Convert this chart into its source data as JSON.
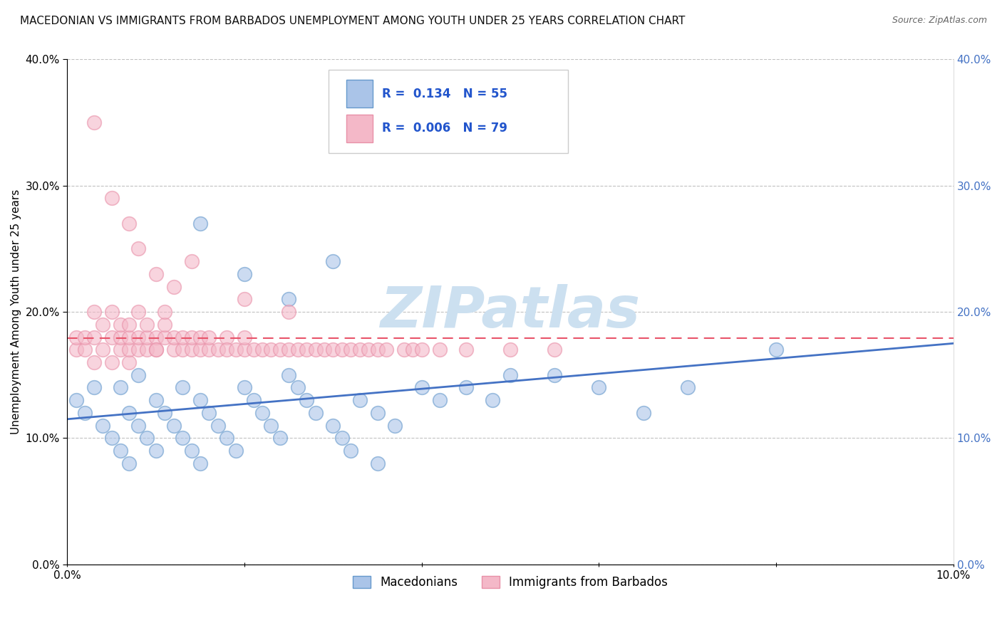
{
  "title": "MACEDONIAN VS IMMIGRANTS FROM BARBADOS UNEMPLOYMENT AMONG YOUTH UNDER 25 YEARS CORRELATION CHART",
  "source": "Source: ZipAtlas.com",
  "ylabel": "Unemployment Among Youth under 25 years",
  "legend_entries": [
    {
      "label": "Macedonians",
      "color": "#aac4e8",
      "R": 0.134,
      "N": 55
    },
    {
      "label": "Immigrants from Barbados",
      "color": "#f4b8c8",
      "R": 0.006,
      "N": 79
    }
  ],
  "xlim": [
    0,
    0.1
  ],
  "ylim": [
    0,
    0.4
  ],
  "xtick_positions": [
    0.0,
    0.1
  ],
  "xtick_labels": [
    "0.0%",
    "10.0%"
  ],
  "yticks": [
    0.0,
    0.1,
    0.2,
    0.3,
    0.4
  ],
  "blue_scatter_x": [
    0.001,
    0.002,
    0.003,
    0.004,
    0.005,
    0.006,
    0.006,
    0.007,
    0.007,
    0.008,
    0.008,
    0.009,
    0.01,
    0.01,
    0.011,
    0.012,
    0.013,
    0.013,
    0.014,
    0.015,
    0.015,
    0.016,
    0.017,
    0.018,
    0.019,
    0.02,
    0.021,
    0.022,
    0.023,
    0.024,
    0.025,
    0.026,
    0.027,
    0.028,
    0.03,
    0.031,
    0.032,
    0.033,
    0.035,
    0.037,
    0.04,
    0.042,
    0.045,
    0.048,
    0.05,
    0.055,
    0.06,
    0.065,
    0.07,
    0.08,
    0.015,
    0.02,
    0.025,
    0.03,
    0.035
  ],
  "blue_scatter_y": [
    0.13,
    0.12,
    0.14,
    0.11,
    0.1,
    0.09,
    0.14,
    0.08,
    0.12,
    0.11,
    0.15,
    0.1,
    0.09,
    0.13,
    0.12,
    0.11,
    0.1,
    0.14,
    0.09,
    0.08,
    0.13,
    0.12,
    0.11,
    0.1,
    0.09,
    0.14,
    0.13,
    0.12,
    0.11,
    0.1,
    0.15,
    0.14,
    0.13,
    0.12,
    0.11,
    0.1,
    0.09,
    0.13,
    0.12,
    0.11,
    0.14,
    0.13,
    0.14,
    0.13,
    0.15,
    0.15,
    0.14,
    0.12,
    0.14,
    0.17,
    0.27,
    0.23,
    0.21,
    0.24,
    0.08
  ],
  "pink_scatter_x": [
    0.001,
    0.001,
    0.002,
    0.002,
    0.003,
    0.003,
    0.003,
    0.004,
    0.004,
    0.005,
    0.005,
    0.005,
    0.006,
    0.006,
    0.006,
    0.007,
    0.007,
    0.007,
    0.007,
    0.008,
    0.008,
    0.008,
    0.009,
    0.009,
    0.009,
    0.01,
    0.01,
    0.01,
    0.011,
    0.011,
    0.011,
    0.012,
    0.012,
    0.013,
    0.013,
    0.014,
    0.014,
    0.015,
    0.015,
    0.016,
    0.016,
    0.017,
    0.018,
    0.018,
    0.019,
    0.02,
    0.02,
    0.021,
    0.022,
    0.023,
    0.024,
    0.025,
    0.026,
    0.027,
    0.028,
    0.029,
    0.03,
    0.031,
    0.032,
    0.033,
    0.034,
    0.035,
    0.036,
    0.038,
    0.039,
    0.04,
    0.042,
    0.045,
    0.05,
    0.055,
    0.003,
    0.005,
    0.007,
    0.008,
    0.01,
    0.012,
    0.014,
    0.02,
    0.025
  ],
  "pink_scatter_y": [
    0.17,
    0.18,
    0.17,
    0.18,
    0.16,
    0.18,
    0.2,
    0.17,
    0.19,
    0.16,
    0.18,
    0.2,
    0.17,
    0.18,
    0.19,
    0.16,
    0.17,
    0.18,
    0.19,
    0.17,
    0.18,
    0.2,
    0.17,
    0.18,
    0.19,
    0.17,
    0.18,
    0.17,
    0.18,
    0.19,
    0.2,
    0.17,
    0.18,
    0.17,
    0.18,
    0.17,
    0.18,
    0.17,
    0.18,
    0.17,
    0.18,
    0.17,
    0.18,
    0.17,
    0.17,
    0.17,
    0.18,
    0.17,
    0.17,
    0.17,
    0.17,
    0.17,
    0.17,
    0.17,
    0.17,
    0.17,
    0.17,
    0.17,
    0.17,
    0.17,
    0.17,
    0.17,
    0.17,
    0.17,
    0.17,
    0.17,
    0.17,
    0.17,
    0.17,
    0.17,
    0.35,
    0.29,
    0.27,
    0.25,
    0.23,
    0.22,
    0.24,
    0.21,
    0.2
  ],
  "blue_line_x": [
    0.0,
    0.1
  ],
  "blue_line_y": [
    0.115,
    0.175
  ],
  "pink_line_x": [
    0.0,
    0.1
  ],
  "pink_line_y": [
    0.179,
    0.179
  ],
  "blue_line_color": "#4472c4",
  "pink_line_color": "#e8546a",
  "blue_marker_color": "#aac4e8",
  "pink_marker_color": "#f4b8c8",
  "blue_marker_edge": "#6699cc",
  "pink_marker_edge": "#e890a8",
  "background_color": "#ffffff",
  "grid_color": "#bbbbbb",
  "watermark": "ZIPatlas",
  "watermark_color": "#cce0f0",
  "title_fontsize": 11,
  "axis_label_fontsize": 11,
  "tick_fontsize": 11,
  "legend_fontsize": 12,
  "source_fontsize": 9,
  "R_N_color": "#2255cc"
}
